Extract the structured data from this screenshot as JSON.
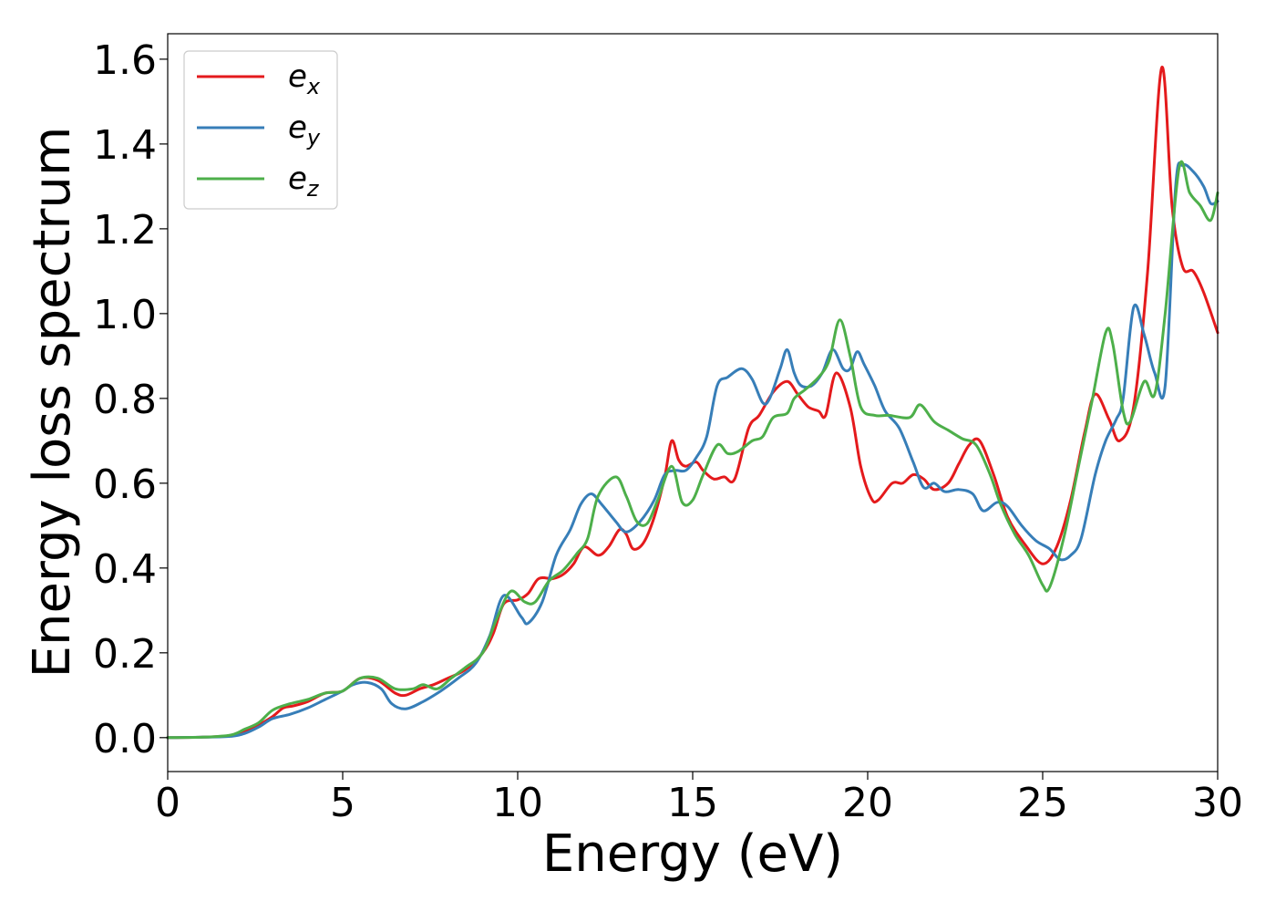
{
  "chart_data": {
    "type": "line",
    "xlabel": "Energy (eV)",
    "ylabel": "Energy loss spectrum",
    "xlim": [
      0,
      30
    ],
    "ylim": [
      -0.08,
      1.66
    ],
    "xticks": [
      0,
      5,
      10,
      15,
      20,
      25,
      30
    ],
    "yticks": [
      0.0,
      0.2,
      0.4,
      0.6,
      0.8,
      1.0,
      1.2,
      1.4,
      1.6
    ],
    "xtick_labels": [
      "0",
      "5",
      "10",
      "15",
      "20",
      "25",
      "30"
    ],
    "ytick_labels": [
      "0.0",
      "0.2",
      "0.4",
      "0.6",
      "0.8",
      "1.0",
      "1.2",
      "1.4",
      "1.6"
    ],
    "grid": false,
    "legend_position": "top-left",
    "series": [
      {
        "name": "e",
        "subscript": "x",
        "color": "#e41a1c",
        "points": [
          [
            0,
            0
          ],
          [
            1,
            0.001
          ],
          [
            1.8,
            0.005
          ],
          [
            2.2,
            0.015
          ],
          [
            2.6,
            0.03
          ],
          [
            3,
            0.05
          ],
          [
            3.3,
            0.07
          ],
          [
            3.6,
            0.075
          ],
          [
            4,
            0.085
          ],
          [
            4.5,
            0.105
          ],
          [
            5,
            0.11
          ],
          [
            5.5,
            0.14
          ],
          [
            6,
            0.135
          ],
          [
            6.5,
            0.105
          ],
          [
            6.8,
            0.1
          ],
          [
            7.2,
            0.115
          ],
          [
            7.6,
            0.125
          ],
          [
            8,
            0.14
          ],
          [
            8.5,
            0.16
          ],
          [
            9,
            0.2
          ],
          [
            9.3,
            0.245
          ],
          [
            9.6,
            0.315
          ],
          [
            10,
            0.325
          ],
          [
            10.3,
            0.34
          ],
          [
            10.6,
            0.375
          ],
          [
            11,
            0.375
          ],
          [
            11.3,
            0.385
          ],
          [
            11.6,
            0.41
          ],
          [
            11.9,
            0.45
          ],
          [
            12.3,
            0.43
          ],
          [
            12.6,
            0.45
          ],
          [
            12.9,
            0.49
          ],
          [
            13.1,
            0.48
          ],
          [
            13.3,
            0.445
          ],
          [
            13.6,
            0.46
          ],
          [
            13.9,
            0.52
          ],
          [
            14.2,
            0.615
          ],
          [
            14.4,
            0.7
          ],
          [
            14.6,
            0.655
          ],
          [
            14.8,
            0.64
          ],
          [
            15.1,
            0.65
          ],
          [
            15.3,
            0.63
          ],
          [
            15.6,
            0.61
          ],
          [
            15.9,
            0.615
          ],
          [
            16.2,
            0.61
          ],
          [
            16.6,
            0.73
          ],
          [
            16.9,
            0.76
          ],
          [
            17.3,
            0.815
          ],
          [
            17.7,
            0.84
          ],
          [
            18,
            0.81
          ],
          [
            18.3,
            0.78
          ],
          [
            18.6,
            0.77
          ],
          [
            18.8,
            0.76
          ],
          [
            19.1,
            0.86
          ],
          [
            19.5,
            0.78
          ],
          [
            19.8,
            0.64
          ],
          [
            20.1,
            0.565
          ],
          [
            20.3,
            0.56
          ],
          [
            20.7,
            0.6
          ],
          [
            21,
            0.6
          ],
          [
            21.3,
            0.62
          ],
          [
            21.6,
            0.61
          ],
          [
            21.9,
            0.585
          ],
          [
            22.3,
            0.6
          ],
          [
            22.6,
            0.645
          ],
          [
            22.9,
            0.69
          ],
          [
            23.2,
            0.7
          ],
          [
            23.6,
            0.62
          ],
          [
            24,
            0.52
          ],
          [
            24.5,
            0.455
          ],
          [
            25,
            0.41
          ],
          [
            25.4,
            0.45
          ],
          [
            25.8,
            0.56
          ],
          [
            26.2,
            0.72
          ],
          [
            26.5,
            0.81
          ],
          [
            26.9,
            0.75
          ],
          [
            27.2,
            0.7
          ],
          [
            27.6,
            0.78
          ],
          [
            28,
            1.1
          ],
          [
            28.4,
            1.58
          ],
          [
            28.7,
            1.25
          ],
          [
            29,
            1.11
          ],
          [
            29.3,
            1.1
          ],
          [
            29.6,
            1.05
          ],
          [
            30,
            0.955
          ]
        ]
      },
      {
        "name": "e",
        "subscript": "y",
        "color": "#377eb8",
        "points": [
          [
            0,
            0
          ],
          [
            1,
            0.001
          ],
          [
            1.8,
            0.003
          ],
          [
            2.2,
            0.01
          ],
          [
            2.6,
            0.025
          ],
          [
            3,
            0.045
          ],
          [
            3.5,
            0.055
          ],
          [
            4,
            0.07
          ],
          [
            4.5,
            0.09
          ],
          [
            5,
            0.11
          ],
          [
            5.3,
            0.125
          ],
          [
            5.7,
            0.13
          ],
          [
            6.1,
            0.115
          ],
          [
            6.4,
            0.08
          ],
          [
            6.8,
            0.068
          ],
          [
            7.3,
            0.085
          ],
          [
            7.8,
            0.11
          ],
          [
            8.3,
            0.14
          ],
          [
            8.8,
            0.175
          ],
          [
            9.2,
            0.24
          ],
          [
            9.6,
            0.335
          ],
          [
            10.1,
            0.285
          ],
          [
            10.3,
            0.27
          ],
          [
            10.7,
            0.32
          ],
          [
            11.1,
            0.43
          ],
          [
            11.5,
            0.49
          ],
          [
            11.8,
            0.55
          ],
          [
            12.1,
            0.575
          ],
          [
            12.4,
            0.55
          ],
          [
            12.8,
            0.51
          ],
          [
            13.1,
            0.485
          ],
          [
            13.5,
            0.51
          ],
          [
            13.9,
            0.56
          ],
          [
            14.2,
            0.62
          ],
          [
            14.5,
            0.63
          ],
          [
            14.8,
            0.63
          ],
          [
            15.1,
            0.66
          ],
          [
            15.4,
            0.71
          ],
          [
            15.7,
            0.83
          ],
          [
            16,
            0.85
          ],
          [
            16.4,
            0.87
          ],
          [
            16.7,
            0.845
          ],
          [
            17,
            0.79
          ],
          [
            17.2,
            0.8
          ],
          [
            17.5,
            0.87
          ],
          [
            17.7,
            0.915
          ],
          [
            17.9,
            0.86
          ],
          [
            18.1,
            0.83
          ],
          [
            18.4,
            0.83
          ],
          [
            18.7,
            0.86
          ],
          [
            19,
            0.915
          ],
          [
            19.3,
            0.87
          ],
          [
            19.5,
            0.87
          ],
          [
            19.7,
            0.91
          ],
          [
            19.9,
            0.88
          ],
          [
            20.2,
            0.83
          ],
          [
            20.5,
            0.77
          ],
          [
            20.9,
            0.73
          ],
          [
            21.3,
            0.65
          ],
          [
            21.6,
            0.59
          ],
          [
            21.9,
            0.6
          ],
          [
            22.2,
            0.58
          ],
          [
            22.6,
            0.585
          ],
          [
            23,
            0.575
          ],
          [
            23.3,
            0.535
          ],
          [
            23.7,
            0.555
          ],
          [
            24,
            0.545
          ],
          [
            24.4,
            0.5
          ],
          [
            24.8,
            0.465
          ],
          [
            25.2,
            0.445
          ],
          [
            25.5,
            0.42
          ],
          [
            25.8,
            0.43
          ],
          [
            26.1,
            0.47
          ],
          [
            26.5,
            0.62
          ],
          [
            26.8,
            0.7
          ],
          [
            27.1,
            0.75
          ],
          [
            27.3,
            0.8
          ],
          [
            27.6,
            1.015
          ],
          [
            27.9,
            0.95
          ],
          [
            28.2,
            0.86
          ],
          [
            28.5,
            0.83
          ],
          [
            28.8,
            1.3
          ],
          [
            29,
            1.35
          ],
          [
            29.3,
            1.335
          ],
          [
            29.6,
            1.3
          ],
          [
            29.8,
            1.26
          ],
          [
            30,
            1.265
          ]
        ]
      },
      {
        "name": "e",
        "subscript": "z",
        "color": "#4daf4a",
        "points": [
          [
            0,
            0
          ],
          [
            1,
            0.001
          ],
          [
            1.8,
            0.006
          ],
          [
            2.2,
            0.02
          ],
          [
            2.6,
            0.035
          ],
          [
            3,
            0.065
          ],
          [
            3.5,
            0.08
          ],
          [
            4,
            0.09
          ],
          [
            4.5,
            0.105
          ],
          [
            5,
            0.11
          ],
          [
            5.5,
            0.14
          ],
          [
            6,
            0.14
          ],
          [
            6.5,
            0.115
          ],
          [
            7,
            0.115
          ],
          [
            7.3,
            0.125
          ],
          [
            7.7,
            0.115
          ],
          [
            8.1,
            0.14
          ],
          [
            8.5,
            0.165
          ],
          [
            9,
            0.2
          ],
          [
            9.4,
            0.28
          ],
          [
            9.8,
            0.345
          ],
          [
            10.2,
            0.32
          ],
          [
            10.5,
            0.32
          ],
          [
            10.9,
            0.37
          ],
          [
            11.3,
            0.395
          ],
          [
            11.7,
            0.435
          ],
          [
            12,
            0.47
          ],
          [
            12.3,
            0.57
          ],
          [
            12.8,
            0.615
          ],
          [
            13.1,
            0.57
          ],
          [
            13.4,
            0.51
          ],
          [
            13.7,
            0.505
          ],
          [
            14,
            0.56
          ],
          [
            14.4,
            0.64
          ],
          [
            14.7,
            0.555
          ],
          [
            15,
            0.56
          ],
          [
            15.3,
            0.62
          ],
          [
            15.7,
            0.69
          ],
          [
            16,
            0.67
          ],
          [
            16.3,
            0.675
          ],
          [
            16.7,
            0.7
          ],
          [
            17,
            0.71
          ],
          [
            17.3,
            0.755
          ],
          [
            17.7,
            0.765
          ],
          [
            17.9,
            0.8
          ],
          [
            18.2,
            0.82
          ],
          [
            18.6,
            0.85
          ],
          [
            18.9,
            0.89
          ],
          [
            19.2,
            0.985
          ],
          [
            19.5,
            0.9
          ],
          [
            19.8,
            0.78
          ],
          [
            20.2,
            0.76
          ],
          [
            20.6,
            0.76
          ],
          [
            21.2,
            0.755
          ],
          [
            21.5,
            0.785
          ],
          [
            21.9,
            0.745
          ],
          [
            22.3,
            0.725
          ],
          [
            22.7,
            0.705
          ],
          [
            23.1,
            0.69
          ],
          [
            23.5,
            0.62
          ],
          [
            23.8,
            0.55
          ],
          [
            24.2,
            0.48
          ],
          [
            24.6,
            0.43
          ],
          [
            25,
            0.36
          ],
          [
            25.2,
            0.355
          ],
          [
            25.6,
            0.47
          ],
          [
            26,
            0.63
          ],
          [
            26.4,
            0.79
          ],
          [
            26.8,
            0.955
          ],
          [
            27,
            0.93
          ],
          [
            27.3,
            0.77
          ],
          [
            27.5,
            0.745
          ],
          [
            27.9,
            0.84
          ],
          [
            28.2,
            0.81
          ],
          [
            28.5,
            1.0
          ],
          [
            28.9,
            1.345
          ],
          [
            29.2,
            1.285
          ],
          [
            29.5,
            1.255
          ],
          [
            29.8,
            1.22
          ],
          [
            30,
            1.285
          ]
        ]
      }
    ]
  }
}
